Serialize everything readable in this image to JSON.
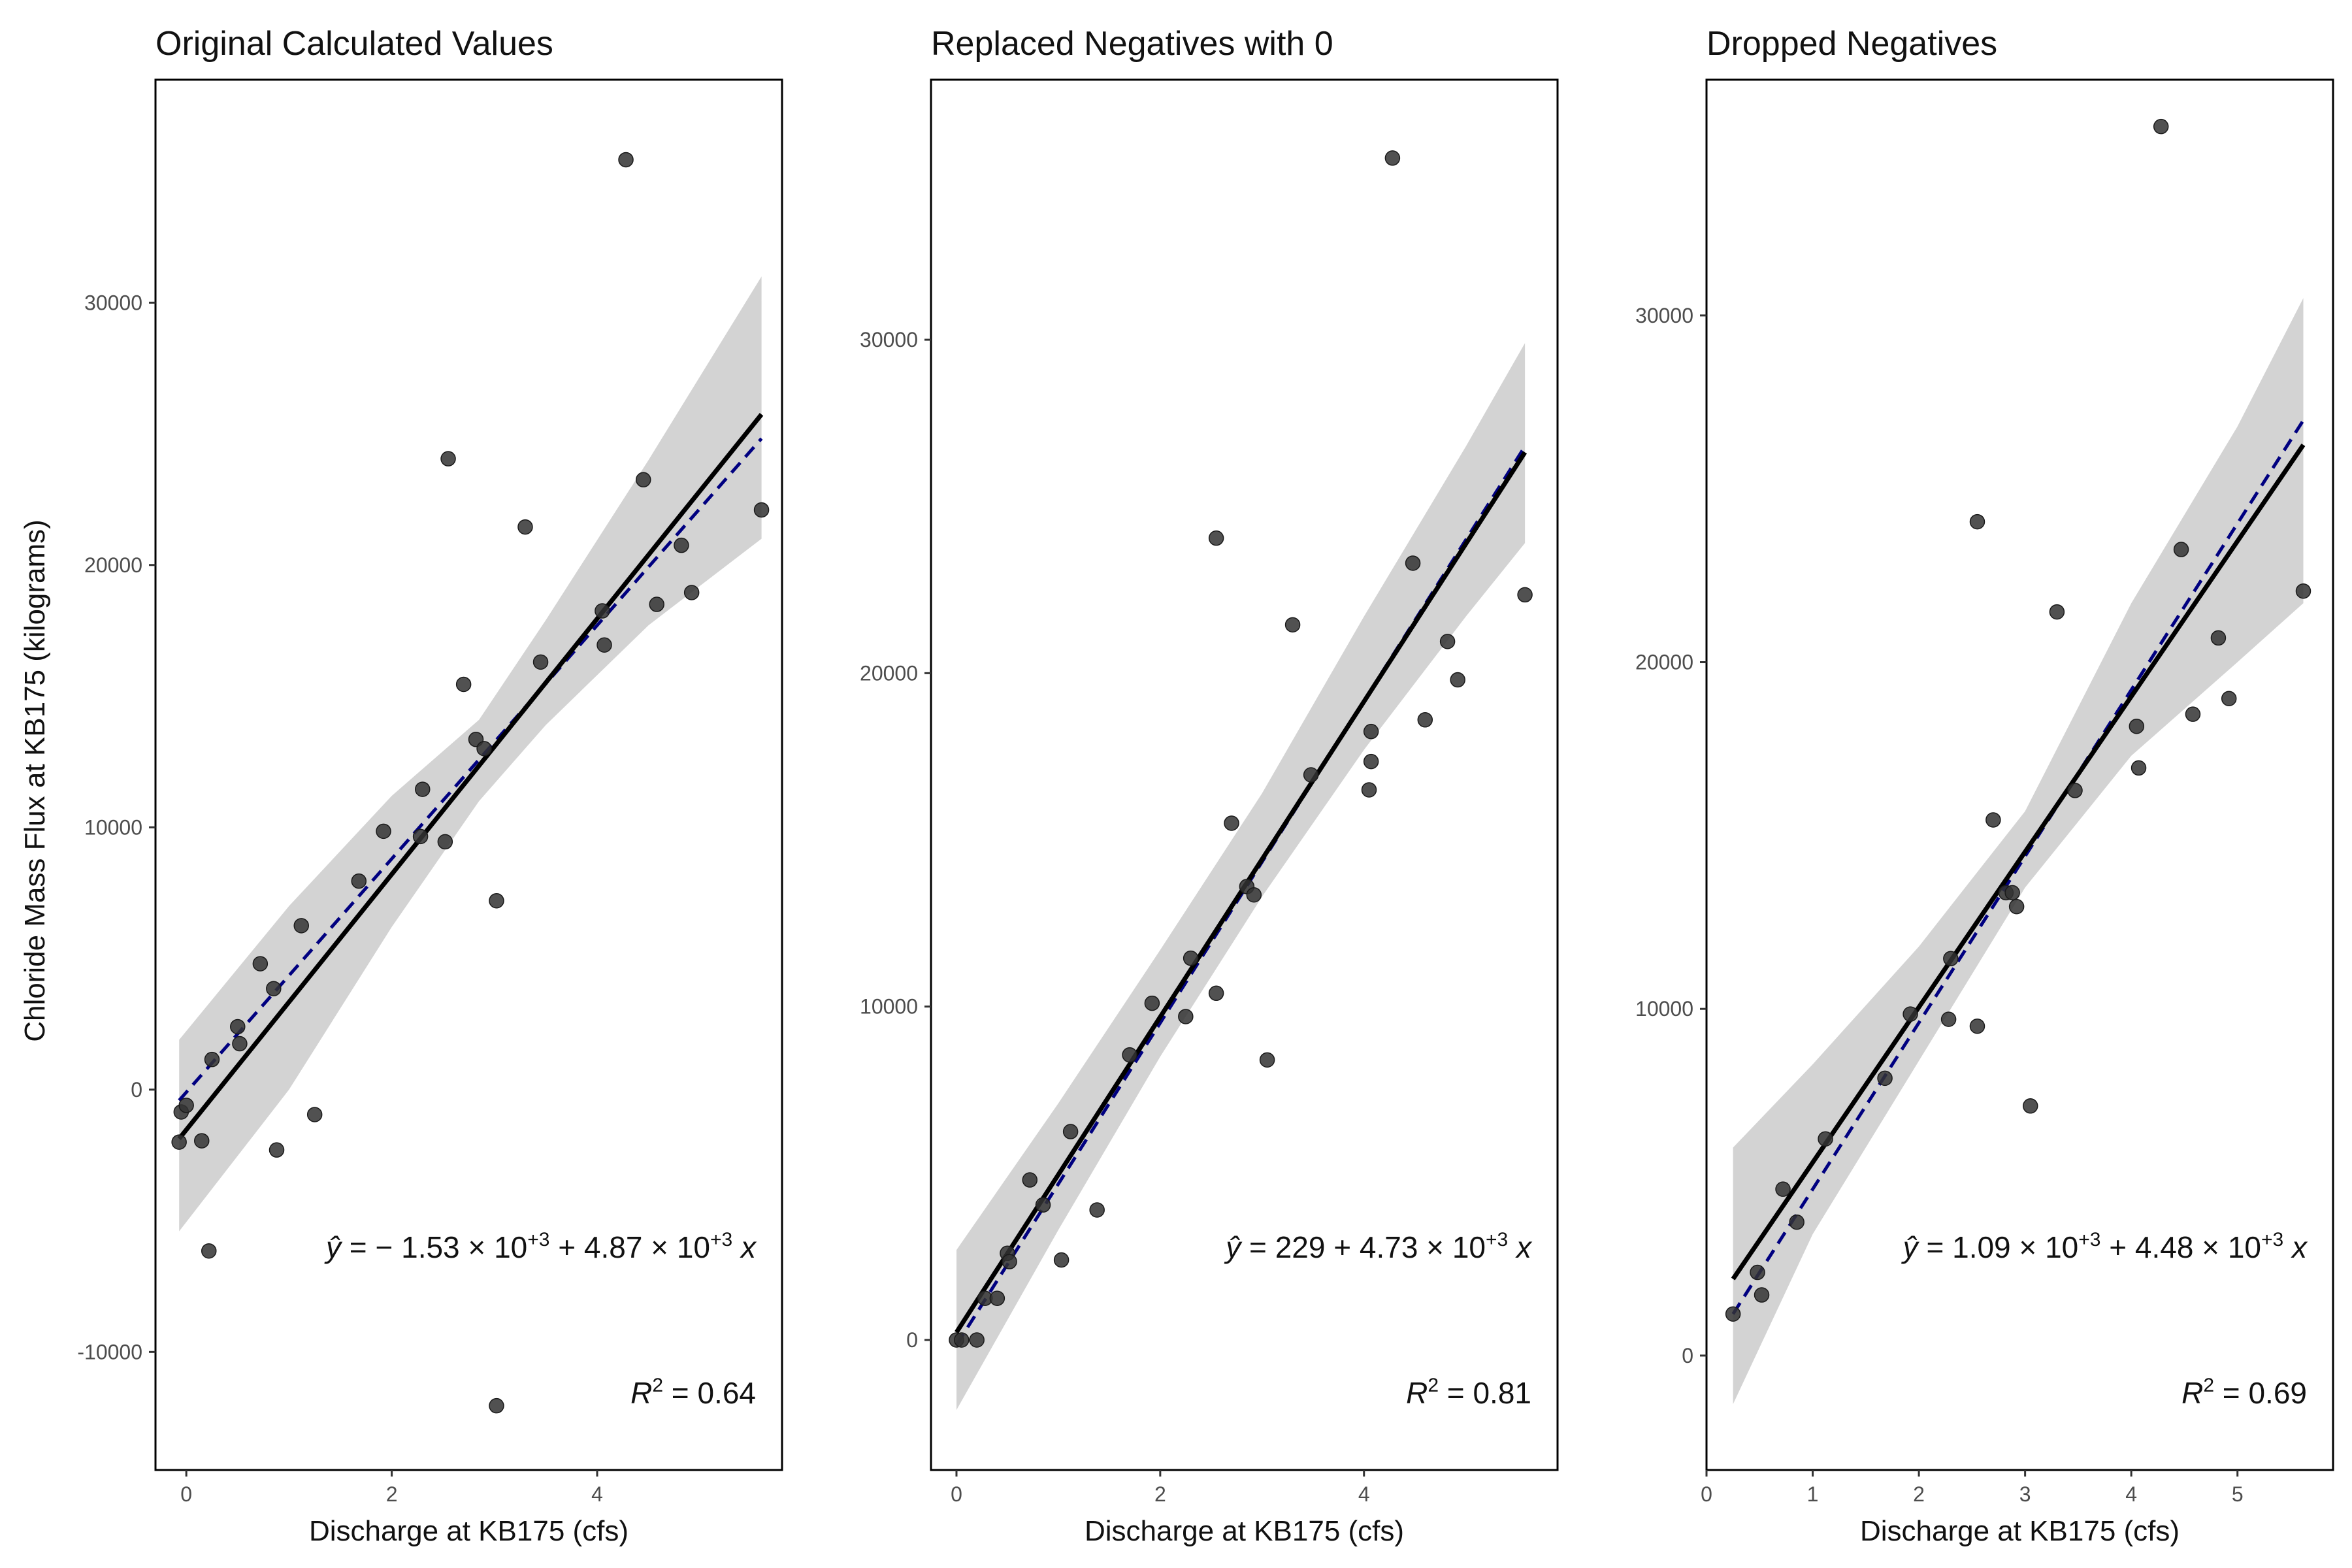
{
  "figure": {
    "y_axis_title": "Chloride Mass Flux at KB175 (kilograms)",
    "colors": {
      "point": "#333333",
      "fit_line": "#000000",
      "ribbon": "#d3d3d3",
      "dashed_line": "#000080",
      "frame": "#000000"
    }
  },
  "chart_data": [
    {
      "type": "scatter",
      "title": "Original Calculated Values",
      "xlabel": "Discharge at KB175 (cfs)",
      "ylabel": "Chloride Mass Flux at KB175 (kilograms)",
      "xlim": [
        -0.3,
        5.8
      ],
      "ylim": [
        -14500,
        38500
      ],
      "xticks": [
        0,
        2,
        4
      ],
      "xtick_labels": [
        "0",
        "2",
        "4"
      ],
      "yticks": [
        -10000,
        0,
        10000,
        20000,
        30000
      ],
      "ytick_labels": [
        "-10000",
        "0",
        "10000",
        "20000",
        "30000"
      ],
      "grid": false,
      "points": [
        [
          -0.05,
          -850
        ],
        [
          0.0,
          -600
        ],
        [
          -0.07,
          -2000
        ],
        [
          0.15,
          -1950
        ],
        [
          0.22,
          -6150
        ],
        [
          0.25,
          1150
        ],
        [
          0.5,
          2400
        ],
        [
          0.52,
          1750
        ],
        [
          0.72,
          4800
        ],
        [
          0.85,
          3850
        ],
        [
          0.88,
          -2300
        ],
        [
          1.12,
          6250
        ],
        [
          1.25,
          -950
        ],
        [
          1.68,
          7950
        ],
        [
          1.92,
          9850
        ],
        [
          2.28,
          9650
        ],
        [
          2.3,
          11450
        ],
        [
          2.52,
          9450
        ],
        [
          2.55,
          24050
        ],
        [
          2.7,
          15450
        ],
        [
          2.82,
          13350
        ],
        [
          2.9,
          13000
        ],
        [
          3.02,
          7200
        ],
        [
          3.02,
          -12050
        ],
        [
          3.3,
          21450
        ],
        [
          3.45,
          16300
        ],
        [
          4.05,
          18250
        ],
        [
          4.07,
          16950
        ],
        [
          4.28,
          35450
        ],
        [
          4.45,
          23250
        ],
        [
          4.58,
          18500
        ],
        [
          4.82,
          20750
        ],
        [
          4.92,
          18950
        ],
        [
          5.6,
          22100
        ]
      ],
      "fit": {
        "x_range": [
          -0.07,
          5.6
        ],
        "intercept": -1530,
        "slope": 4870,
        "ci_lo": [
          [
            -0.07,
            -5400
          ],
          [
            1,
            0
          ],
          [
            2,
            6200
          ],
          [
            2.85,
            11000
          ],
          [
            3.5,
            13900
          ],
          [
            4.5,
            17700
          ],
          [
            5.6,
            21000
          ]
        ],
        "ci_hi": [
          [
            -0.07,
            1900
          ],
          [
            1,
            7000
          ],
          [
            2,
            11200
          ],
          [
            2.85,
            14100
          ],
          [
            3.5,
            17900
          ],
          [
            4.5,
            24000
          ],
          [
            5.6,
            31000
          ]
        ]
      },
      "dashed": {
        "x_range": [
          -0.07,
          5.6
        ],
        "intercept": -100,
        "slope": 4450
      },
      "equation": {
        "lead": "− 1.53 × 10",
        "lead_exp": "+3",
        "mid": " + 4.87 × 10",
        "mid_exp": "+3"
      },
      "r2": {
        "value": "0.64"
      }
    },
    {
      "type": "scatter",
      "title": "Replaced Negatives with 0",
      "xlabel": "Discharge at KB175 (cfs)",
      "ylabel": "",
      "xlim": [
        -0.25,
        5.9
      ],
      "ylim": [
        -3900,
        37800
      ],
      "xticks": [
        0,
        2,
        4
      ],
      "xtick_labels": [
        "0",
        "2",
        "4"
      ],
      "yticks": [
        0,
        10000,
        20000,
        30000
      ],
      "ytick_labels": [
        "0",
        "10000",
        "20000",
        "30000"
      ],
      "grid": false,
      "points": [
        [
          0.0,
          0
        ],
        [
          0.05,
          0
        ],
        [
          0.2,
          0
        ],
        [
          0.28,
          1250
        ],
        [
          0.4,
          1250
        ],
        [
          0.5,
          2600
        ],
        [
          0.52,
          2350
        ],
        [
          0.72,
          4800
        ],
        [
          0.85,
          4050
        ],
        [
          1.03,
          2400
        ],
        [
          1.12,
          6250
        ],
        [
          1.38,
          3900
        ],
        [
          1.7,
          8550
        ],
        [
          1.92,
          10100
        ],
        [
          2.25,
          9700
        ],
        [
          2.3,
          11450
        ],
        [
          2.55,
          10400
        ],
        [
          2.55,
          24050
        ],
        [
          2.7,
          15500
        ],
        [
          2.85,
          13600
        ],
        [
          2.92,
          13350
        ],
        [
          3.05,
          8400
        ],
        [
          3.3,
          21450
        ],
        [
          3.48,
          16950
        ],
        [
          4.05,
          16500
        ],
        [
          4.07,
          17350
        ],
        [
          4.07,
          18250
        ],
        [
          4.28,
          35450
        ],
        [
          4.48,
          23300
        ],
        [
          4.6,
          18600
        ],
        [
          4.82,
          20950
        ],
        [
          4.92,
          19800
        ],
        [
          5.58,
          22350
        ]
      ],
      "fit": {
        "x_range": [
          0.0,
          5.58
        ],
        "intercept": 229,
        "slope": 4730,
        "ci_lo": [
          [
            0,
            -2100
          ],
          [
            1,
            3300
          ],
          [
            2,
            8500
          ],
          [
            3,
            13300
          ],
          [
            4,
            17700
          ],
          [
            5,
            21700
          ],
          [
            5.58,
            23900
          ]
        ],
        "ci_hi": [
          [
            0,
            2700
          ],
          [
            1,
            7100
          ],
          [
            2,
            11700
          ],
          [
            3,
            16400
          ],
          [
            4,
            21700
          ],
          [
            5,
            26800
          ],
          [
            5.58,
            29900
          ]
        ]
      },
      "dashed": {
        "x_range": [
          0.0,
          5.58
        ],
        "intercept": -150,
        "slope": 4830
      },
      "equation": {
        "lead": "229 + 4.73 × 10",
        "lead_exp": "+3",
        "mid": "",
        "mid_exp": ""
      },
      "r2": {
        "value": "0.81"
      }
    },
    {
      "type": "scatter",
      "title": "Dropped Negatives",
      "xlabel": "Discharge at KB175 (cfs)",
      "ylabel": "",
      "xlim": [
        0.0,
        5.9
      ],
      "ylim": [
        -3300,
        36800
      ],
      "xticks": [
        0,
        1,
        2,
        3,
        4,
        5
      ],
      "xtick_labels": [
        "0",
        "1",
        "2",
        "3",
        "4",
        "5"
      ],
      "yticks": [
        0,
        10000,
        20000,
        30000
      ],
      "ytick_labels": [
        "0",
        "10000",
        "20000",
        "30000"
      ],
      "grid": false,
      "points": [
        [
          0.25,
          1200
        ],
        [
          0.48,
          2400
        ],
        [
          0.52,
          1750
        ],
        [
          0.72,
          4800
        ],
        [
          0.85,
          3850
        ],
        [
          1.12,
          6250
        ],
        [
          1.68,
          8000
        ],
        [
          1.92,
          9850
        ],
        [
          2.28,
          9700
        ],
        [
          2.3,
          11450
        ],
        [
          2.55,
          9500
        ],
        [
          2.55,
          24050
        ],
        [
          2.7,
          15450
        ],
        [
          2.82,
          13350
        ],
        [
          2.88,
          13350
        ],
        [
          2.92,
          12950
        ],
        [
          3.05,
          7200
        ],
        [
          3.3,
          21450
        ],
        [
          3.47,
          16300
        ],
        [
          4.05,
          18150
        ],
        [
          4.07,
          16950
        ],
        [
          4.28,
          35450
        ],
        [
          4.47,
          23250
        ],
        [
          4.58,
          18500
        ],
        [
          4.82,
          20700
        ],
        [
          4.92,
          18950
        ],
        [
          5.62,
          22050
        ]
      ],
      "fit": {
        "x_range": [
          0.25,
          5.62
        ],
        "intercept": 1090,
        "slope": 4480,
        "ci_lo": [
          [
            0.25,
            -1400
          ],
          [
            1,
            3500
          ],
          [
            2,
            8500
          ],
          [
            3,
            13500
          ],
          [
            4,
            17300
          ],
          [
            5,
            20000
          ],
          [
            5.62,
            21700
          ]
        ],
        "ci_hi": [
          [
            0.25,
            6000
          ],
          [
            1,
            8400
          ],
          [
            2,
            11800
          ],
          [
            3,
            15700
          ],
          [
            4,
            21700
          ],
          [
            5,
            26800
          ],
          [
            5.62,
            30500
          ]
        ]
      },
      "dashed": {
        "x_range": [
          0.25,
          5.62
        ],
        "intercept": 0,
        "slope": 4800
      },
      "equation": {
        "lead": "1.09 × 10",
        "lead_exp": "+3",
        "mid": " + 4.48 × 10",
        "mid_exp": "+3"
      },
      "r2": {
        "value": "0.69"
      }
    }
  ]
}
